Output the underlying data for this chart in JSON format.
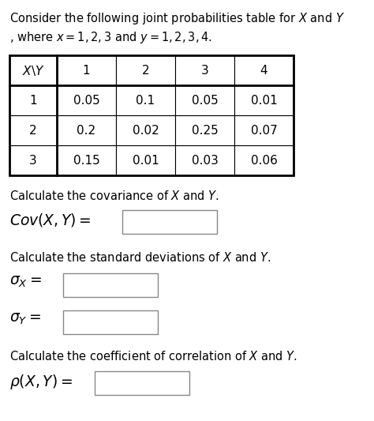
{
  "title_line1": "Consider the following joint probabilities table for $X$ and $Y$",
  "title_line2": ", where $x = 1, 2, 3$ and $y = 1, 2, 3, 4$.",
  "table_header": [
    "$X\\backslash Y$",
    "1",
    "2",
    "3",
    "4"
  ],
  "table_rows": [
    [
      "1",
      "0.05",
      "0.1",
      "0.05",
      "0.01"
    ],
    [
      "2",
      "0.2",
      "0.02",
      "0.25",
      "0.07"
    ],
    [
      "3",
      "0.15",
      "0.01",
      "0.03",
      "0.06"
    ]
  ],
  "cov_desc": "Calculate the covariance of $X$ and $Y$.",
  "cov_label": "$Cov(X, Y) =$",
  "std_desc": "Calculate the standard deviations of $X$ and $Y$.",
  "sigma_x_label": "$\\sigma_X =$",
  "sigma_y_label": "$\\sigma_Y =$",
  "corr_desc": "Calculate the coefficient of correlation of $X$ and $Y$.",
  "rho_label": "$\\rho(X, Y) =$",
  "bg_color": "#ffffff",
  "text_color": "#000000",
  "table_border_color": "#000000",
  "box_border": "#888888",
  "title_fontsize": 10.5,
  "body_fontsize": 10.5,
  "formula_fontsize": 13.5,
  "table_fontsize": 11.0
}
